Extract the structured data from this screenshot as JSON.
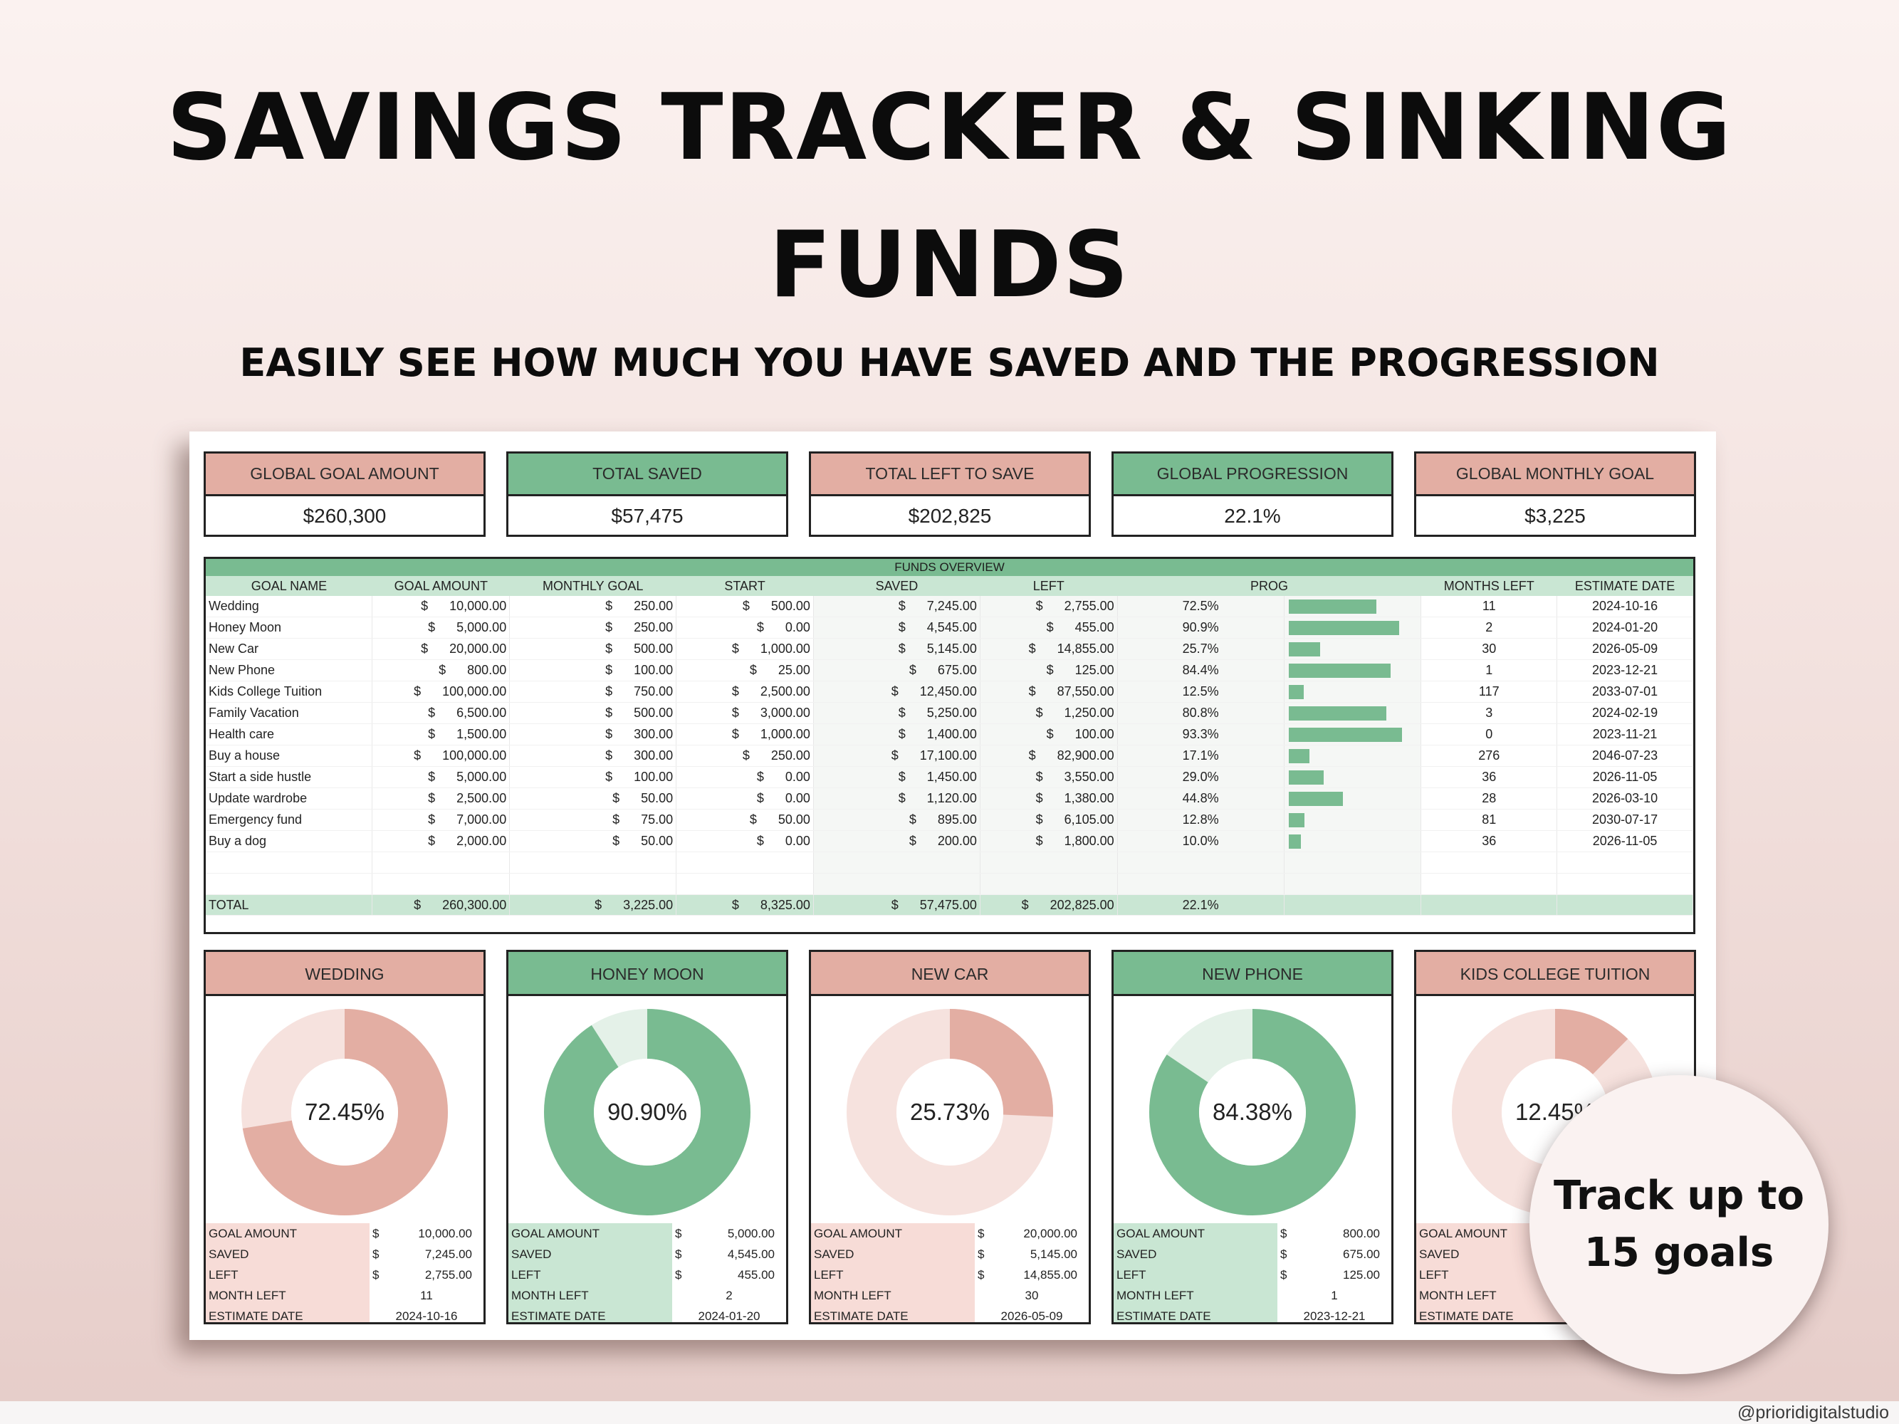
{
  "header": {
    "title_line1": "SAVINGS TRACKER & SINKING",
    "title_line2": "FUNDS",
    "subtitle": "EASILY SEE HOW MUCH YOU HAVE SAVED AND THE PROGRESSION"
  },
  "colors": {
    "pink": "#e3aea3",
    "pink_light": "#f7dcd7",
    "green": "#79bb91",
    "green_light": "#c9e6d3"
  },
  "kpis": [
    {
      "label": "GLOBAL GOAL AMOUNT",
      "value": "$260,300",
      "color": "pink"
    },
    {
      "label": "TOTAL SAVED",
      "value": "$57,475",
      "color": "green"
    },
    {
      "label": "TOTAL LEFT TO SAVE",
      "value": "$202,825",
      "color": "pink"
    },
    {
      "label": "GLOBAL PROGRESSION",
      "value": "22.1%",
      "color": "green"
    },
    {
      "label": "GLOBAL MONTHLY GOAL",
      "value": "$3,225",
      "color": "pink"
    }
  ],
  "table": {
    "title": "FUNDS OVERVIEW",
    "headers": [
      "GOAL NAME",
      "GOAL AMOUNT",
      "MONTHLY GOAL",
      "START",
      "SAVED",
      "LEFT",
      "PROG",
      "MONTHS LEFT",
      "ESTIMATE DATE"
    ],
    "currency": "$",
    "rows": [
      {
        "name": "Wedding",
        "goal": "10,000.00",
        "monthly": "250.00",
        "start": "500.00",
        "saved": "7,245.00",
        "left": "2,755.00",
        "prog": "72.5%",
        "progress": 0.7245,
        "months": "11",
        "date": "2024-10-16"
      },
      {
        "name": "Honey Moon",
        "goal": "5,000.00",
        "monthly": "250.00",
        "start": "0.00",
        "saved": "4,545.00",
        "left": "455.00",
        "prog": "90.9%",
        "progress": 0.909,
        "months": "2",
        "date": "2024-01-20"
      },
      {
        "name": "New Car",
        "goal": "20,000.00",
        "monthly": "500.00",
        "start": "1,000.00",
        "saved": "5,145.00",
        "left": "14,855.00",
        "prog": "25.7%",
        "progress": 0.2573,
        "months": "30",
        "date": "2026-05-09"
      },
      {
        "name": "New Phone",
        "goal": "800.00",
        "monthly": "100.00",
        "start": "25.00",
        "saved": "675.00",
        "left": "125.00",
        "prog": "84.4%",
        "progress": 0.8438,
        "months": "1",
        "date": "2023-12-21"
      },
      {
        "name": "Kids College Tuition",
        "goal": "100,000.00",
        "monthly": "750.00",
        "start": "2,500.00",
        "saved": "12,450.00",
        "left": "87,550.00",
        "prog": "12.5%",
        "progress": 0.1245,
        "months": "117",
        "date": "2033-07-01"
      },
      {
        "name": "Family Vacation",
        "goal": "6,500.00",
        "monthly": "500.00",
        "start": "3,000.00",
        "saved": "5,250.00",
        "left": "1,250.00",
        "prog": "80.8%",
        "progress": 0.808,
        "months": "3",
        "date": "2024-02-19"
      },
      {
        "name": "Health care",
        "goal": "1,500.00",
        "monthly": "300.00",
        "start": "1,000.00",
        "saved": "1,400.00",
        "left": "100.00",
        "prog": "93.3%",
        "progress": 0.933,
        "months": "0",
        "date": "2023-11-21"
      },
      {
        "name": "Buy a house",
        "goal": "100,000.00",
        "monthly": "300.00",
        "start": "250.00",
        "saved": "17,100.00",
        "left": "82,900.00",
        "prog": "17.1%",
        "progress": 0.171,
        "months": "276",
        "date": "2046-07-23"
      },
      {
        "name": "Start a side hustle",
        "goal": "5,000.00",
        "monthly": "100.00",
        "start": "0.00",
        "saved": "1,450.00",
        "left": "3,550.00",
        "prog": "29.0%",
        "progress": 0.29,
        "months": "36",
        "date": "2026-11-05"
      },
      {
        "name": "Update wardrobe",
        "goal": "2,500.00",
        "monthly": "50.00",
        "start": "0.00",
        "saved": "1,120.00",
        "left": "1,380.00",
        "prog": "44.8%",
        "progress": 0.448,
        "months": "28",
        "date": "2026-03-10"
      },
      {
        "name": "Emergency fund",
        "goal": "7,000.00",
        "monthly": "75.00",
        "start": "50.00",
        "saved": "895.00",
        "left": "6,105.00",
        "prog": "12.8%",
        "progress": 0.128,
        "months": "81",
        "date": "2030-07-17"
      },
      {
        "name": "Buy a dog",
        "goal": "2,000.00",
        "monthly": "50.00",
        "start": "0.00",
        "saved": "200.00",
        "left": "1,800.00",
        "prog": "10.0%",
        "progress": 0.1,
        "months": "36",
        "date": "2026-11-05"
      }
    ],
    "total": {
      "label": "TOTAL",
      "goal": "260,300.00",
      "monthly": "3,225.00",
      "start": "8,325.00",
      "saved": "57,475.00",
      "left": "202,825.00",
      "prog": "22.1%"
    }
  },
  "cards": [
    {
      "title": "WEDDING",
      "color": "pink",
      "pct_label": "72.45%",
      "progress": 0.7245,
      "goal": "10,000.00",
      "saved": "7,245.00",
      "left": "2,755.00",
      "months": "11",
      "date": "2024-10-16"
    },
    {
      "title": "HONEY MOON",
      "color": "green",
      "pct_label": "90.90%",
      "progress": 0.909,
      "goal": "5,000.00",
      "saved": "4,545.00",
      "left": "455.00",
      "months": "2",
      "date": "2024-01-20"
    },
    {
      "title": "NEW CAR",
      "color": "pink",
      "pct_label": "25.73%",
      "progress": 0.2573,
      "goal": "20,000.00",
      "saved": "5,145.00",
      "left": "14,855.00",
      "months": "30",
      "date": "2026-05-09"
    },
    {
      "title": "NEW PHONE",
      "color": "green",
      "pct_label": "84.38%",
      "progress": 0.8438,
      "goal": "800.00",
      "saved": "675.00",
      "left": "125.00",
      "months": "1",
      "date": "2023-12-21"
    },
    {
      "title": "KIDS COLLEGE TUITION",
      "color": "pink",
      "pct_label": "12.45%",
      "progress": 0.1245,
      "goal": "",
      "saved": "",
      "left": "",
      "months": "",
      "date": ""
    }
  ],
  "card_labels": {
    "goal": "GOAL AMOUNT",
    "saved": "SAVED",
    "left": "LEFT",
    "months": "MONTH LEFT",
    "date": "ESTIMATE DATE"
  },
  "badge": {
    "line1": "Track up to",
    "line2": "15 goals"
  },
  "watermark": "@prioridigitalstudio"
}
